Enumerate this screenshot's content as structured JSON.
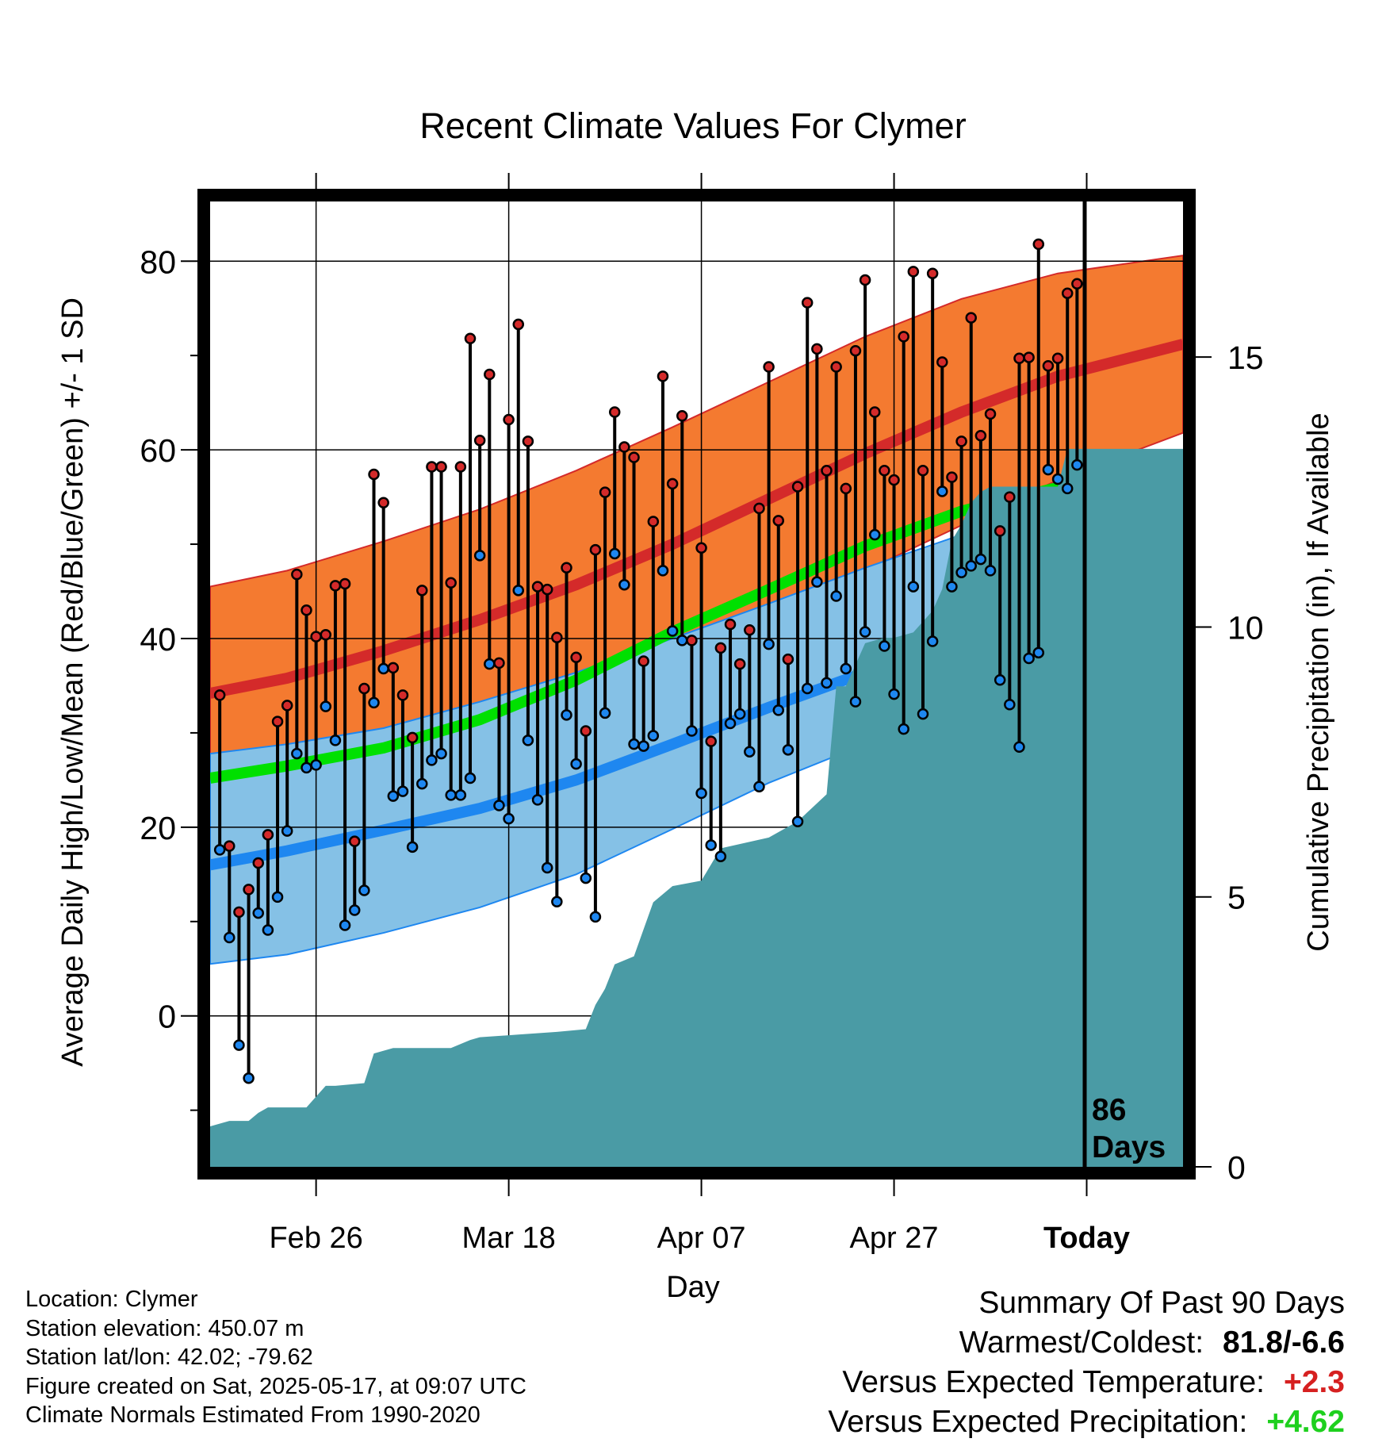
{
  "chart_data": {
    "type": "line",
    "title": "Recent Climate Values For Clymer",
    "xlabel": "Day",
    "ylabel_left": "Average Daily High/Low/Mean (Red/Blue/Green) +/- 1 SD",
    "ylabel_right": "Cumulative Precipitation (in), If Available",
    "x_ticks": [
      {
        "day": 13,
        "label": "Feb 26"
      },
      {
        "day": 33,
        "label": "Mar 18"
      },
      {
        "day": 53,
        "label": "Apr 07"
      },
      {
        "day": 73,
        "label": "Apr 27"
      },
      {
        "day": 93,
        "label": "Today"
      }
    ],
    "xlim": [
      2,
      103
    ],
    "ylim_left": [
      -16,
      87
    ],
    "ylim_right": [
      0,
      18
    ],
    "y_ticks_left": [
      0,
      20,
      40,
      60,
      80
    ],
    "y_ticks_right": [
      0,
      5,
      10,
      15
    ],
    "today_marker": {
      "day": 93,
      "label_line1": "86",
      "label_line2": "Days"
    },
    "normals": {
      "day": [
        2,
        10,
        20,
        30,
        40,
        50,
        60,
        70,
        80,
        90,
        103
      ],
      "high_mean": [
        34.2,
        35.8,
        38.7,
        42.0,
        45.7,
        50.0,
        54.8,
        59.6,
        64.0,
        67.8,
        71.2
      ],
      "high_sd_upper": [
        45.5,
        47.2,
        50.3,
        53.7,
        57.8,
        62.4,
        67.2,
        72.0,
        76.0,
        78.7,
        80.6
      ],
      "high_sd_lower": [
        23.0,
        24.5,
        27.2,
        30.3,
        33.6,
        37.6,
        42.4,
        47.2,
        52.0,
        56.8,
        61.8
      ],
      "low_mean": [
        16.0,
        17.5,
        19.7,
        22.0,
        25.0,
        28.8,
        32.7,
        36.4,
        40.0,
        43.5,
        47.7
      ],
      "low_sd_upper": [
        27.8,
        28.8,
        30.5,
        33.3,
        36.4,
        40.0,
        43.7,
        47.5,
        51.0,
        53.5,
        55.7
      ],
      "low_sd_lower": [
        5.5,
        6.5,
        8.8,
        11.5,
        15.0,
        19.8,
        24.7,
        28.8,
        32.0,
        35.0,
        39.3
      ],
      "mean": [
        25.2,
        26.5,
        28.4,
        31.4,
        35.6,
        40.7,
        45.2,
        49.8,
        53.5,
        56.0,
        59.2
      ]
    },
    "series": [
      {
        "name": "High",
        "values": [
          34.0,
          18.0,
          11.0,
          13.4,
          16.2,
          19.2,
          31.2,
          32.9,
          46.8,
          43.0,
          40.2,
          40.4,
          45.6,
          45.8,
          18.5,
          34.7,
          57.4,
          54.4,
          36.9,
          34.0,
          29.5,
          45.1,
          58.2,
          58.2,
          45.9,
          58.2,
          71.8,
          61.0,
          68.0,
          37.4,
          63.2,
          73.3,
          60.9,
          45.5,
          45.2,
          40.1,
          47.5,
          38.0,
          30.2,
          49.4,
          55.5,
          64.0,
          60.3,
          59.2,
          37.6,
          52.4,
          67.8,
          56.4,
          63.6,
          39.8,
          49.6,
          29.1,
          39.0,
          41.5,
          37.3,
          40.9,
          53.8,
          68.8,
          52.5,
          37.8,
          56.1,
          75.6,
          70.7,
          57.8,
          68.8,
          55.9,
          70.5,
          78.0,
          64.0,
          57.8,
          56.8,
          72.0,
          78.9,
          57.8,
          78.7,
          69.3,
          57.1,
          60.9,
          74.0,
          61.5,
          63.8,
          51.4,
          55.0,
          69.7,
          69.8,
          81.8,
          68.9,
          69.7,
          76.6,
          77.6
        ]
      },
      {
        "name": "Low",
        "values": [
          17.6,
          8.3,
          -3.1,
          -6.6,
          10.9,
          9.1,
          12.6,
          19.6,
          27.8,
          26.3,
          26.6,
          32.8,
          29.2,
          9.6,
          11.2,
          13.3,
          33.2,
          36.8,
          23.3,
          23.8,
          17.9,
          24.6,
          27.1,
          27.8,
          23.4,
          23.4,
          25.2,
          48.8,
          37.3,
          22.3,
          20.9,
          45.1,
          29.2,
          22.9,
          15.7,
          12.1,
          31.9,
          26.7,
          14.6,
          10.5,
          32.1,
          49.0,
          45.7,
          28.8,
          28.6,
          29.7,
          47.2,
          40.8,
          39.8,
          30.2,
          23.6,
          18.1,
          16.9,
          31.0,
          32.0,
          28.0,
          24.3,
          39.4,
          32.4,
          28.2,
          20.6,
          34.7,
          46.0,
          35.3,
          44.5,
          36.8,
          33.3,
          40.7,
          51.0,
          39.2,
          34.1,
          30.4,
          45.5,
          32.0,
          39.7,
          55.6,
          45.5,
          47.0,
          47.7,
          48.4,
          47.2,
          35.6,
          33.0,
          28.5,
          37.9,
          38.5,
          57.9,
          56.9,
          55.9,
          58.4
        ]
      },
      {
        "name": "Cumulative Precipitation",
        "day": [
          2,
          4,
          6,
          7,
          8,
          12,
          13,
          14,
          15,
          18,
          19,
          21,
          22,
          24,
          27,
          29,
          30,
          34,
          38,
          41,
          42,
          43,
          44,
          46,
          47,
          48,
          50,
          53,
          55,
          60,
          62,
          63,
          66,
          67,
          68,
          70,
          72,
          73,
          75,
          77,
          78,
          79,
          80,
          81,
          82,
          83,
          86,
          90,
          91,
          103
        ],
        "values": [
          0.75,
          0.85,
          0.85,
          1.0,
          1.1,
          1.1,
          1.3,
          1.5,
          1.5,
          1.55,
          2.1,
          2.2,
          2.2,
          2.2,
          2.2,
          2.35,
          2.4,
          2.45,
          2.5,
          2.55,
          3.0,
          3.3,
          3.75,
          3.9,
          4.4,
          4.9,
          5.2,
          5.3,
          5.9,
          6.1,
          6.3,
          6.4,
          6.9,
          8.9,
          8.9,
          9.7,
          9.8,
          9.8,
          9.9,
          10.3,
          10.7,
          11.6,
          11.9,
          12.3,
          12.5,
          12.6,
          12.6,
          12.6,
          13.3,
          13.3
        ]
      }
    ]
  },
  "footer": {
    "location": "Location: Clymer",
    "elevation": "Station elevation: 450.07 m",
    "latlon": "Station lat/lon: 42.02; -79.62",
    "created": "Figure created on Sat, 2025-05-17, at 09:07 UTC",
    "normals": "Climate Normals Estimated From 1990-2020"
  },
  "summary": {
    "heading": "Summary Of Past 90 Days",
    "warm_label": "Warmest/Coldest:",
    "warm_value": "81.8/-6.6",
    "temp_label": "Versus Expected Temperature:",
    "temp_value": "+2.3",
    "precip_label": "Versus Expected Precipitation:",
    "precip_value": "+4.62"
  },
  "colors": {
    "high": "#d42a2a",
    "high_band": "#f47a30",
    "low": "#1e87f0",
    "low_band": "#85c1e6",
    "mean": "#00e000",
    "overlap": "#a52020",
    "precip": "#4a9ba5",
    "temp_anomaly": "#d62020",
    "precip_anomaly": "#1ed01e"
  }
}
